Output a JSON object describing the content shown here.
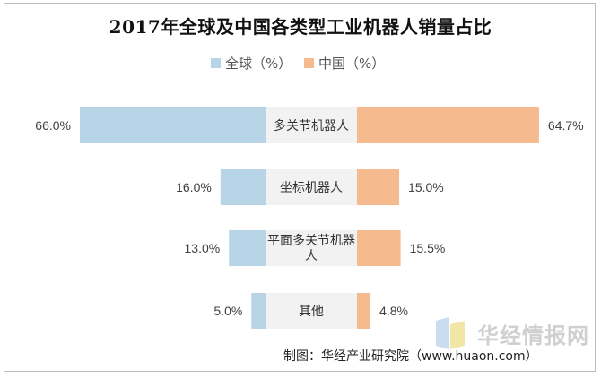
{
  "chart_data": {
    "type": "bar",
    "orientation": "horizontal-butterfly",
    "title": "2017年全球及中国各类型工业机器人销量占比",
    "categories": [
      "多关节机器人",
      "坐标机器人",
      "平面多关节机器人",
      "其他"
    ],
    "series": [
      {
        "name": "全球（%）",
        "color": "#b8d5e7",
        "values": [
          66.0,
          16.0,
          13.0,
          5.0
        ],
        "labels": [
          "66.0%",
          "16.0%",
          "13.0%",
          "5.0%"
        ]
      },
      {
        "name": "中国（%）",
        "color": "#f5bb8f",
        "values": [
          64.7,
          15.0,
          15.5,
          4.8
        ],
        "labels": [
          "64.7%",
          "15.0%",
          "15.5%",
          "4.8%"
        ]
      }
    ],
    "legend_position": "top",
    "grid": false,
    "xlim": [
      0,
      70
    ]
  },
  "watermark": {
    "text": "华经情报网",
    "logo": "huajing-logo-icon"
  },
  "source_text": "制图：华经产业研究院（www.huaon.com）"
}
